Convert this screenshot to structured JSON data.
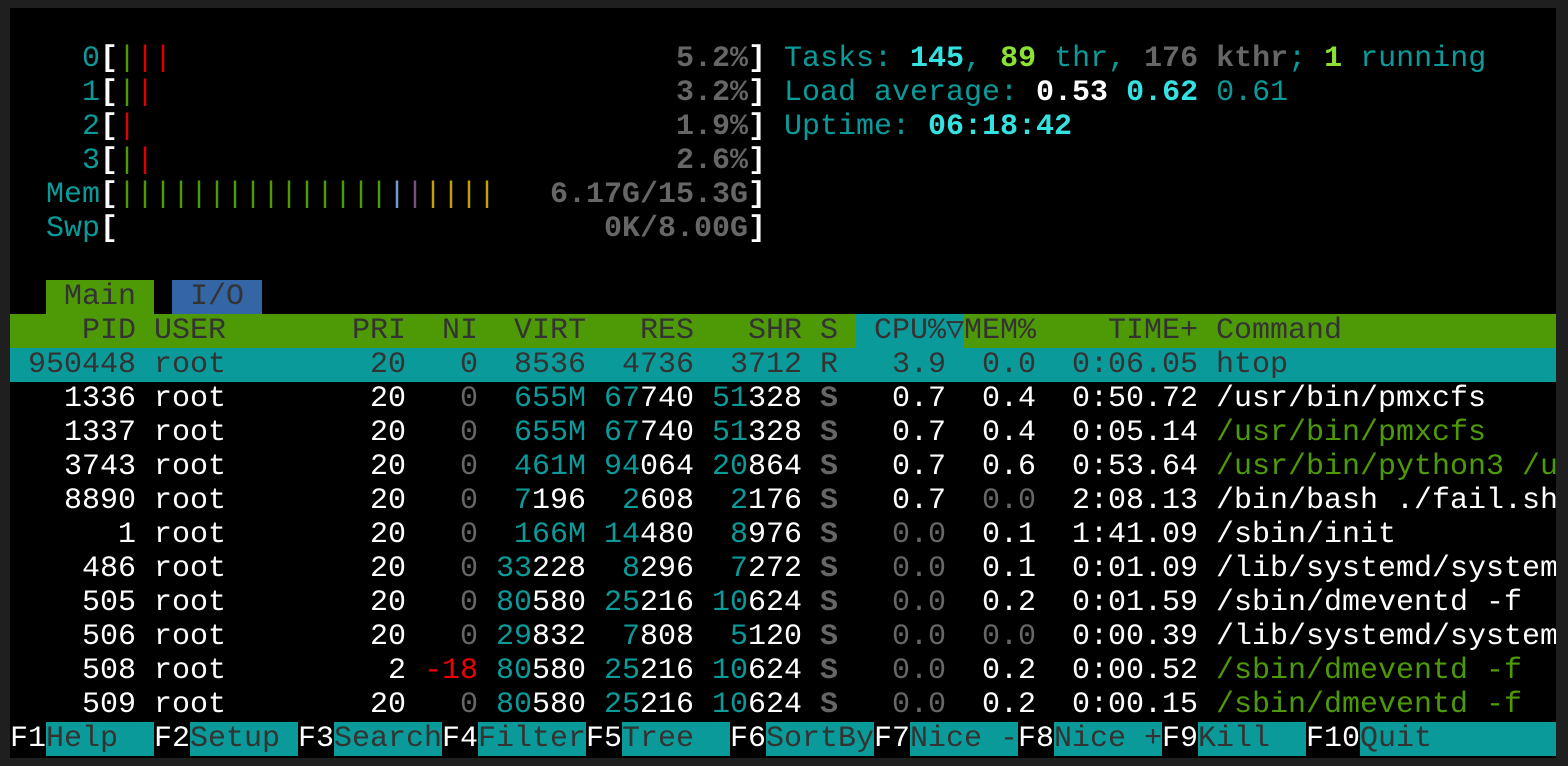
{
  "meters": {
    "cpus": [
      {
        "label": "0",
        "bars": [
          "#4e9a06",
          "#e00000",
          "#e00000"
        ],
        "value": "5.2%"
      },
      {
        "label": "1",
        "bars": [
          "#4e9a06",
          "#e00000"
        ],
        "value": "3.2%"
      },
      {
        "label": "2",
        "bars": [
          "#e00000"
        ],
        "value": "1.9%"
      },
      {
        "label": "3",
        "bars": [
          "#4e9a06",
          "#e00000"
        ],
        "value": "2.6%"
      }
    ],
    "mem": {
      "label": "Mem",
      "bars": [
        "#4e9a06",
        "#4e9a06",
        "#4e9a06",
        "#4e9a06",
        "#4e9a06",
        "#4e9a06",
        "#4e9a06",
        "#4e9a06",
        "#4e9a06",
        "#4e9a06",
        "#4e9a06",
        "#4e9a06",
        "#4e9a06",
        "#4e9a06",
        "#4e9a06",
        "#729fcf",
        "#75507b",
        "#c4a000",
        "#c4a000",
        "#c4a000",
        "#c4a000"
      ],
      "value": "6.17G/15.3G"
    },
    "swap": {
      "label": "Swp",
      "bars": [],
      "value": "0K/8.00G"
    }
  },
  "summary": {
    "tasks_label": "Tasks: ",
    "tasks": "145",
    "sep1": ", ",
    "threads": "89",
    "thr_label": " thr, ",
    "kthreads": "176 kthr",
    "sep2": "; ",
    "running": "1",
    "running_label": " running",
    "load_label": "Load average: ",
    "load1": "0.53",
    "load5": "0.62",
    "load15": "0.61",
    "uptime_label": "Uptime: ",
    "uptime": "06:18:42"
  },
  "tabs": [
    {
      "label": "Main",
      "active": true
    },
    {
      "label": "I/O",
      "active": false
    }
  ],
  "columns": {
    "pid": "PID",
    "user": "USER",
    "pri": "PRI",
    "ni": "NI",
    "virt": "VIRT",
    "res": "RES",
    "shr": "SHR",
    "s": "S",
    "cpu": "CPU%",
    "sort": "▽",
    "mem": "MEM%",
    "time": "TIME+",
    "command": "Command"
  },
  "processes": [
    {
      "pid": "950448",
      "user": "root",
      "pri": "20",
      "ni": "0",
      "virt": "8536",
      "res": "4736",
      "shr": "3712",
      "s": "R",
      "cpu": "3.9",
      "mem": "0.0",
      "time": "0:06.05",
      "command": "htop",
      "selected": true
    },
    {
      "pid": "1336",
      "user": "root",
      "pri": "20",
      "ni": "0",
      "virt": "655M",
      "res": "67740",
      "shr": "51328",
      "s": "S",
      "cpu": "0.7",
      "mem": "0.4",
      "time": "0:50.72",
      "command": "/usr/bin/pmxcfs"
    },
    {
      "pid": "1337",
      "user": "root",
      "pri": "20",
      "ni": "0",
      "virt": "655M",
      "res": "67740",
      "shr": "51328",
      "s": "S",
      "cpu": "0.7",
      "mem": "0.4",
      "time": "0:05.14",
      "command": "/usr/bin/pmxcfs",
      "thread": true
    },
    {
      "pid": "3743",
      "user": "root",
      "pri": "20",
      "ni": "0",
      "virt": "461M",
      "res": "94064",
      "shr": "20864",
      "s": "S",
      "cpu": "0.7",
      "mem": "0.6",
      "time": "0:53.64",
      "command": "/usr/bin/python3 /u",
      "thread": true
    },
    {
      "pid": "8890",
      "user": "root",
      "pri": "20",
      "ni": "0",
      "virt": "7196",
      "res": "2608",
      "shr": "2176",
      "s": "S",
      "cpu": "0.7",
      "mem": "0.0",
      "time": "2:08.13",
      "command": "/bin/bash ./fail.sh"
    },
    {
      "pid": "1",
      "user": "root",
      "pri": "20",
      "ni": "0",
      "virt": "166M",
      "res": "14480",
      "shr": "8976",
      "s": "S",
      "cpu": "0.0",
      "mem": "0.1",
      "time": "1:41.09",
      "command": "/sbin/init"
    },
    {
      "pid": "486",
      "user": "root",
      "pri": "20",
      "ni": "0",
      "virt": "33228",
      "res": "8296",
      "shr": "7272",
      "s": "S",
      "cpu": "0.0",
      "mem": "0.1",
      "time": "0:01.09",
      "command": "/lib/systemd/system"
    },
    {
      "pid": "505",
      "user": "root",
      "pri": "20",
      "ni": "0",
      "virt": "80580",
      "res": "25216",
      "shr": "10624",
      "s": "S",
      "cpu": "0.0",
      "mem": "0.2",
      "time": "0:01.59",
      "command": "/sbin/dmeventd -f"
    },
    {
      "pid": "506",
      "user": "root",
      "pri": "20",
      "ni": "0",
      "virt": "29832",
      "res": "7808",
      "shr": "5120",
      "s": "S",
      "cpu": "0.0",
      "mem": "0.0",
      "time": "0:00.39",
      "command": "/lib/systemd/system"
    },
    {
      "pid": "508",
      "user": "root",
      "pri": "2",
      "ni": "-18",
      "virt": "80580",
      "res": "25216",
      "shr": "10624",
      "s": "S",
      "cpu": "0.0",
      "mem": "0.2",
      "time": "0:00.52",
      "command": "/sbin/dmeventd -f",
      "thread": true
    },
    {
      "pid": "509",
      "user": "root",
      "pri": "20",
      "ni": "0",
      "virt": "80580",
      "res": "25216",
      "shr": "10624",
      "s": "S",
      "cpu": "0.0",
      "mem": "0.2",
      "time": "0:00.15",
      "command": "/sbin/dmeventd -f",
      "thread": true
    }
  ],
  "function_keys": [
    {
      "key": "F1",
      "label": "Help  "
    },
    {
      "key": "F2",
      "label": "Setup "
    },
    {
      "key": "F3",
      "label": "Search"
    },
    {
      "key": "F4",
      "label": "Filter"
    },
    {
      "key": "F5",
      "label": "Tree  "
    },
    {
      "key": "F6",
      "label": "SortBy"
    },
    {
      "key": "F7",
      "label": "Nice -"
    },
    {
      "key": "F8",
      "label": "Nice +"
    },
    {
      "key": "F9",
      "label": "Kill  "
    },
    {
      "key": "F10",
      "label": "Quit"
    }
  ],
  "colors": {
    "teal": "#0a9a9a",
    "header_green": "#4e9a06",
    "tab_blue": "#3465a4",
    "cyan": "#34e2e2"
  }
}
